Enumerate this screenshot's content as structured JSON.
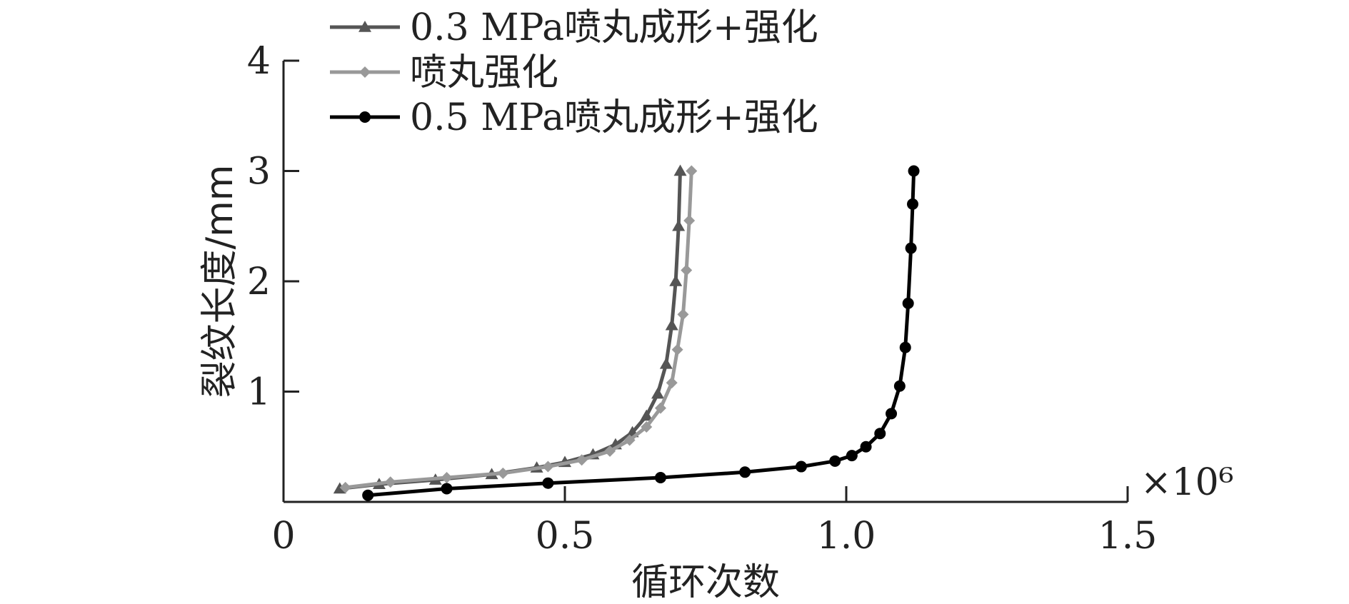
{
  "chart_data": {
    "type": "line",
    "xlabel": "循环次数",
    "ylabel": "裂纹长度/mm",
    "x_multiplier_label": "×10⁶",
    "xlim": [
      0,
      1.5
    ],
    "ylim": [
      0,
      4
    ],
    "x_ticks": [
      0,
      0.5,
      1.0,
      1.5
    ],
    "x_tick_labels": [
      "0",
      "0.5",
      "1.0",
      "1.5"
    ],
    "y_ticks": [
      1,
      2,
      3,
      4
    ],
    "y_tick_labels": [
      "1",
      "2",
      "3",
      "4"
    ],
    "legend_position": "top-left",
    "series": [
      {
        "name": "0.3 MPa喷丸成形+强化",
        "color": "#555555",
        "marker": "triangle",
        "points": [
          [
            0.1,
            0.12
          ],
          [
            0.17,
            0.16
          ],
          [
            0.27,
            0.2
          ],
          [
            0.37,
            0.25
          ],
          [
            0.45,
            0.31
          ],
          [
            0.5,
            0.36
          ],
          [
            0.55,
            0.43
          ],
          [
            0.59,
            0.52
          ],
          [
            0.62,
            0.63
          ],
          [
            0.645,
            0.78
          ],
          [
            0.665,
            0.98
          ],
          [
            0.68,
            1.25
          ],
          [
            0.69,
            1.6
          ],
          [
            0.697,
            2.0
          ],
          [
            0.702,
            2.5
          ],
          [
            0.705,
            3.0
          ]
        ]
      },
      {
        "name": "喷丸强化",
        "color": "#999999",
        "marker": "diamond",
        "points": [
          [
            0.11,
            0.13
          ],
          [
            0.19,
            0.18
          ],
          [
            0.29,
            0.22
          ],
          [
            0.39,
            0.26
          ],
          [
            0.47,
            0.32
          ],
          [
            0.53,
            0.38
          ],
          [
            0.58,
            0.46
          ],
          [
            0.615,
            0.56
          ],
          [
            0.645,
            0.68
          ],
          [
            0.67,
            0.85
          ],
          [
            0.69,
            1.08
          ],
          [
            0.7,
            1.38
          ],
          [
            0.71,
            1.7
          ],
          [
            0.716,
            2.1
          ],
          [
            0.721,
            2.55
          ],
          [
            0.725,
            3.0
          ]
        ]
      },
      {
        "name": "0.5 MPa喷丸成形+强化",
        "color": "#000000",
        "marker": "circle",
        "points": [
          [
            0.15,
            0.06
          ],
          [
            0.29,
            0.12
          ],
          [
            0.47,
            0.17
          ],
          [
            0.67,
            0.22
          ],
          [
            0.82,
            0.27
          ],
          [
            0.92,
            0.32
          ],
          [
            0.98,
            0.37
          ],
          [
            1.01,
            0.42
          ],
          [
            1.035,
            0.5
          ],
          [
            1.06,
            0.62
          ],
          [
            1.08,
            0.8
          ],
          [
            1.095,
            1.05
          ],
          [
            1.105,
            1.4
          ],
          [
            1.11,
            1.8
          ],
          [
            1.115,
            2.3
          ],
          [
            1.118,
            2.7
          ],
          [
            1.12,
            3.0
          ]
        ]
      }
    ]
  }
}
